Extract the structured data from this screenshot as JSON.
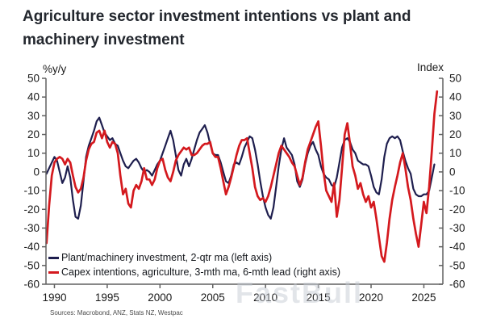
{
  "title": "Agriculture sector investment intentions vs plant and machinery investment",
  "source_note": "Sources: Macrobond, ANZ, Stats NZ, Westpac",
  "watermark": "FastBull",
  "colors": {
    "navy": "#1e1e4e",
    "red": "#d4191e",
    "spine": "#606060",
    "tick_text": "#1a1a1a",
    "title_text": "#23272e",
    "source_text": "#4c4c4c",
    "watermark_text": "#c7ccd4"
  },
  "chart_data": {
    "type": "line",
    "title": "Agriculture sector investment intentions vs plant and machinery investment",
    "left_axis_label": "%y/y",
    "right_axis_label": "Index",
    "xlabel": "",
    "ylabel_left": "%y/y",
    "ylabel_right": "Index",
    "x_range": [
      1989.2,
      2026.8
    ],
    "y_range": [
      -60,
      50
    ],
    "y_ticks": [
      50,
      40,
      30,
      20,
      10,
      0,
      -10,
      -20,
      -30,
      -40,
      -50,
      -60
    ],
    "x_ticks": [
      1990,
      1995,
      2000,
      2005,
      2010,
      2015,
      2020,
      2025
    ],
    "grid": false,
    "legend_position": "bottom-left",
    "series": [
      {
        "name": "Plant/machinery investment, 2-qtr ma (left axis)",
        "axis": "left",
        "color": "#1e1e4e",
        "x": [
          1989.25,
          1989.5,
          1989.75,
          1990,
          1990.25,
          1990.5,
          1990.75,
          1991,
          1991.25,
          1991.5,
          1991.75,
          1992,
          1992.25,
          1992.5,
          1992.75,
          1993,
          1993.25,
          1993.5,
          1993.75,
          1994,
          1994.25,
          1994.5,
          1994.75,
          1995,
          1995.25,
          1995.5,
          1995.75,
          1996,
          1996.25,
          1996.5,
          1996.75,
          1997,
          1997.25,
          1997.5,
          1997.75,
          1998,
          1998.25,
          1998.5,
          1998.75,
          1999,
          1999.25,
          1999.5,
          1999.75,
          2000,
          2000.25,
          2000.5,
          2000.75,
          2001,
          2001.25,
          2001.5,
          2001.75,
          2002,
          2002.25,
          2002.5,
          2002.75,
          2003,
          2003.25,
          2003.5,
          2003.75,
          2004,
          2004.25,
          2004.5,
          2004.75,
          2005,
          2005.25,
          2005.5,
          2005.75,
          2006,
          2006.25,
          2006.5,
          2006.75,
          2007,
          2007.25,
          2007.5,
          2007.75,
          2008,
          2008.25,
          2008.5,
          2008.75,
          2009,
          2009.25,
          2009.5,
          2009.75,
          2010,
          2010.25,
          2010.5,
          2010.75,
          2011,
          2011.25,
          2011.5,
          2011.75,
          2012,
          2012.25,
          2012.5,
          2012.75,
          2013,
          2013.25,
          2013.5,
          2013.75,
          2014,
          2014.25,
          2014.5,
          2014.75,
          2015,
          2015.25,
          2015.5,
          2015.75,
          2016,
          2016.25,
          2016.5,
          2016.75,
          2017,
          2017.25,
          2017.5,
          2017.75,
          2018,
          2018.25,
          2018.5,
          2018.75,
          2019,
          2019.25,
          2019.5,
          2019.75,
          2020,
          2020.25,
          2020.5,
          2020.75,
          2021,
          2021.25,
          2021.5,
          2021.75,
          2022,
          2022.25,
          2022.5,
          2022.75,
          2023,
          2023.25,
          2023.5,
          2023.75,
          2024,
          2024.25,
          2024.5,
          2024.75,
          2025,
          2025.25,
          2025.5,
          2025.75,
          2026
        ],
        "y": [
          -1,
          2,
          5,
          8,
          6,
          0,
          -6,
          -3,
          3,
          -3,
          -15,
          -24,
          -25,
          -18,
          -5,
          8,
          14,
          18,
          22,
          27,
          29,
          25,
          21,
          19,
          17,
          18,
          15,
          14,
          10,
          6,
          3,
          2,
          4,
          6,
          7,
          5,
          2,
          0,
          1,
          0,
          -2,
          1,
          4,
          6,
          10,
          14,
          18,
          22,
          17,
          9,
          1,
          -2,
          4,
          7,
          3,
          7,
          12,
          17,
          21,
          23,
          25,
          21,
          15,
          10,
          9,
          9,
          5,
          0,
          -5,
          -6,
          -2,
          4,
          5,
          4,
          8,
          13,
          16,
          19,
          18,
          12,
          4,
          -5,
          -13,
          -19,
          -23,
          -25,
          -19,
          -8,
          3,
          12,
          18,
          13,
          11,
          9,
          4,
          -5,
          -8,
          -4,
          4,
          10,
          14,
          16,
          12,
          9,
          3,
          -1,
          -3,
          -4,
          -7,
          -8,
          -3,
          5,
          13,
          17,
          18,
          16,
          12,
          10,
          6,
          5,
          4,
          4,
          3,
          -2,
          -8,
          -11,
          -12,
          -4,
          8,
          15,
          18,
          19,
          18,
          19,
          17,
          11,
          6,
          2,
          -1,
          -9,
          -12,
          -13,
          -13,
          -12,
          -12,
          -10,
          -3,
          4
        ]
      },
      {
        "name": "Capex intentions, agriculture, 3-mth ma, 6-mth lead (right axis)",
        "axis": "right",
        "color": "#d4191e",
        "x": [
          1989.25,
          1989.5,
          1989.75,
          1990,
          1990.25,
          1990.5,
          1990.75,
          1991,
          1991.25,
          1991.5,
          1991.75,
          1992,
          1992.25,
          1992.5,
          1992.75,
          1993,
          1993.25,
          1993.5,
          1993.75,
          1994,
          1994.25,
          1994.5,
          1994.75,
          1995,
          1995.25,
          1995.5,
          1995.75,
          1996,
          1996.25,
          1996.5,
          1996.75,
          1997,
          1997.25,
          1997.5,
          1997.75,
          1998,
          1998.25,
          1998.5,
          1998.75,
          1999,
          1999.25,
          1999.5,
          1999.75,
          2000,
          2000.25,
          2000.5,
          2000.75,
          2001,
          2001.25,
          2001.5,
          2001.75,
          2002,
          2002.25,
          2002.5,
          2002.75,
          2003,
          2003.25,
          2003.5,
          2003.75,
          2004,
          2004.25,
          2004.5,
          2004.75,
          2005,
          2005.25,
          2005.5,
          2005.75,
          2006,
          2006.25,
          2006.5,
          2006.75,
          2007,
          2007.25,
          2007.5,
          2007.75,
          2008,
          2008.25,
          2008.5,
          2008.75,
          2009,
          2009.25,
          2009.5,
          2009.75,
          2010,
          2010.25,
          2010.5,
          2010.75,
          2011,
          2011.25,
          2011.5,
          2011.75,
          2012,
          2012.25,
          2012.5,
          2012.75,
          2013,
          2013.25,
          2013.5,
          2013.75,
          2014,
          2014.25,
          2014.5,
          2014.75,
          2015,
          2015.25,
          2015.5,
          2015.75,
          2016,
          2016.25,
          2016.5,
          2016.75,
          2017,
          2017.25,
          2017.5,
          2017.75,
          2018,
          2018.25,
          2018.5,
          2018.75,
          2019,
          2019.25,
          2019.5,
          2019.75,
          2020,
          2020.25,
          2020.5,
          2020.75,
          2021,
          2021.25,
          2021.5,
          2021.75,
          2022,
          2022.25,
          2022.5,
          2022.75,
          2023,
          2023.25,
          2023.5,
          2023.75,
          2024,
          2024.25,
          2024.5,
          2024.75,
          2025,
          2025.25,
          2025.5,
          2025.75,
          2026,
          2026.25
        ],
        "y": [
          -38,
          -18,
          -2,
          5,
          7,
          8,
          7,
          4,
          7,
          5,
          -2,
          -8,
          -11,
          -9,
          -3,
          6,
          12,
          15,
          16,
          21,
          22,
          18,
          22,
          16,
          13,
          16,
          15,
          10,
          -2,
          -12,
          -9,
          -17,
          -19,
          -10,
          -7,
          -9,
          -5,
          2,
          -4,
          -4,
          -7,
          -4,
          2,
          6,
          7,
          1,
          -3,
          -5,
          0,
          6,
          9,
          11,
          13,
          12,
          13,
          9,
          9,
          10,
          12,
          14,
          15,
          15,
          16,
          10,
          8,
          8,
          2,
          -5,
          -12,
          -8,
          -3,
          3,
          9,
          14,
          17,
          17,
          18,
          10,
          2,
          -8,
          -13,
          -15,
          -14,
          -16,
          -13,
          -8,
          -2,
          4,
          10,
          14,
          12,
          10,
          8,
          5,
          3,
          -2,
          -7,
          -3,
          5,
          12,
          16,
          20,
          24,
          27,
          14,
          0,
          -10,
          -13,
          -16,
          -6,
          -24,
          -15,
          2,
          20,
          26,
          15,
          3,
          -2,
          -9,
          -6,
          -12,
          -16,
          -13,
          -19,
          -16,
          -25,
          -35,
          -45,
          -48,
          -38,
          -25,
          -15,
          -8,
          -2,
          5,
          10,
          2,
          -8,
          -15,
          -25,
          -33,
          -40,
          -28,
          -16,
          -22,
          -8,
          11,
          31,
          43
        ]
      }
    ]
  }
}
